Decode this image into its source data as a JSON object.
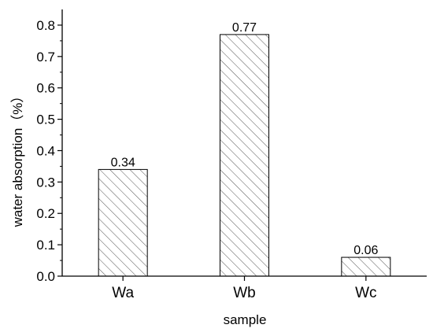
{
  "chart_data": {
    "type": "bar",
    "categories": [
      "Wa",
      "Wb",
      "Wc"
    ],
    "values": [
      0.34,
      0.77,
      0.06
    ],
    "data_labels": [
      "0.34",
      "0.77",
      "0.06"
    ],
    "xlabel": "sample",
    "ylabel": "water absorption（%）",
    "ylim": [
      0.0,
      0.85
    ],
    "yticks": [
      "0.0",
      "0.1",
      "0.2",
      "0.3",
      "0.4",
      "0.5",
      "0.6",
      "0.7",
      "0.8"
    ],
    "grid": false,
    "bar_fill": "hatched"
  }
}
